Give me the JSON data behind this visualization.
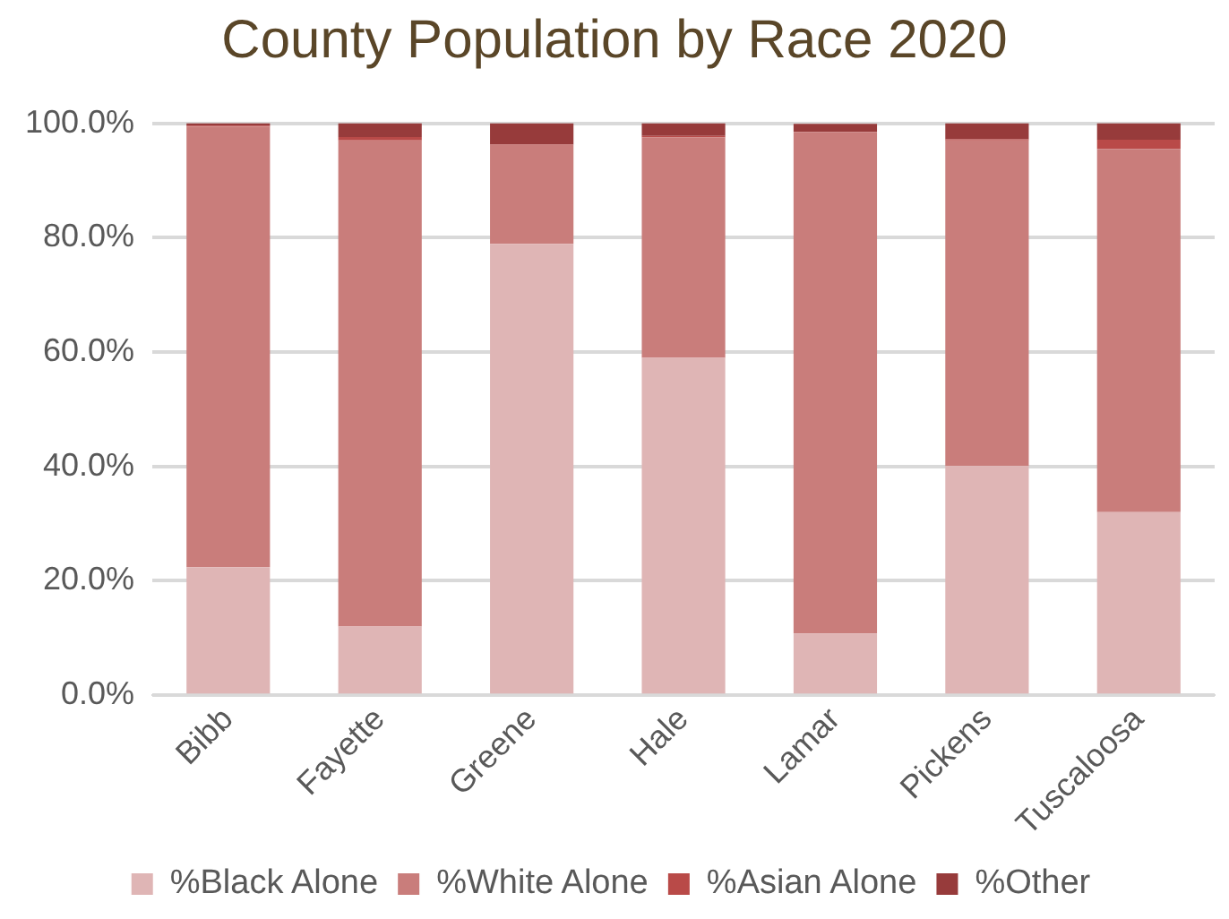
{
  "chart_data": {
    "type": "bar",
    "title": "County Population by Race 2020",
    "stacked": true,
    "categories": [
      "Bibb",
      "Fayette",
      "Greene",
      "Hale",
      "Lamar",
      "Pickens",
      "Tuscaloosa"
    ],
    "series": [
      {
        "name": "%Black Alone",
        "color": "#dfb5b5",
        "values": [
          22.4,
          12.0,
          78.9,
          59.0,
          10.8,
          40.1,
          32.0
        ]
      },
      {
        "name": "%White Alone",
        "color": "#c97d7b",
        "values": [
          77.0,
          85.0,
          17.3,
          38.5,
          87.7,
          56.9,
          63.5
        ]
      },
      {
        "name": "%Asian Alone",
        "color": "#b94a48",
        "values": [
          0.2,
          0.6,
          0.1,
          0.3,
          null,
          0.2,
          1.6
        ]
      },
      {
        "name": "%Other",
        "color": "#973b3b",
        "values": [
          0.4,
          2.4,
          3.7,
          2.2,
          1.4,
          2.8,
          2.9
        ]
      }
    ],
    "ylim": [
      0,
      100
    ],
    "yticks": [
      {
        "value": 0,
        "label": "0.0%"
      },
      {
        "value": 20,
        "label": "20.0%"
      },
      {
        "value": 40,
        "label": "40.0%"
      },
      {
        "value": 60,
        "label": "60.0%"
      },
      {
        "value": 80,
        "label": "80.0%"
      },
      {
        "value": 100,
        "label": "100.0%"
      }
    ],
    "grid": "y",
    "legend": "bottom"
  }
}
